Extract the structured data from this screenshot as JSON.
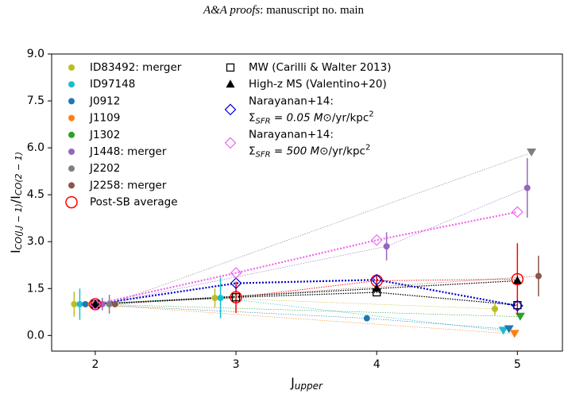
{
  "header": {
    "journal": "A&A proofs",
    "text": ": manuscript no. main"
  },
  "chart_data": {
    "type": "scatter",
    "xlabel": [
      "J",
      "upper"
    ],
    "ylabel": [
      "I",
      "CO(J,J − 1)",
      "/I",
      "CO(2 − 1)"
    ],
    "xlim": [
      1.69,
      5.32
    ],
    "ylim": [
      -0.5,
      9.0
    ],
    "xticks": [
      2,
      3,
      4,
      5
    ],
    "yticks": [
      {
        "value": 0,
        "label": "0.0"
      },
      1.5,
      {
        "value": 3,
        "label": "3.0"
      },
      4.5,
      {
        "value": 6,
        "label": "6.0"
      },
      7.5,
      {
        "value": 9,
        "label": "9.0"
      }
    ],
    "series": [
      {
        "name": "ID83492: merger",
        "color": "#bcbd22",
        "marker": "o",
        "x": [
          1.85,
          2.85,
          4.84
        ],
        "values": [
          1.0,
          1.2,
          0.85
        ],
        "errors": [
          0.4,
          0.3,
          0.2
        ]
      },
      {
        "name": "ID97148",
        "color": "#17becf",
        "marker": "o",
        "x": [
          1.89,
          2.89,
          4.9
        ],
        "values": [
          1.0,
          1.2,
          0.15
        ],
        "errors": [
          0.5,
          0.65,
          null
        ],
        "upper_limits": [
          false,
          false,
          true
        ]
      },
      {
        "name": "J0912",
        "color": "#1f77b4",
        "marker": "o",
        "x": [
          1.93,
          3.93,
          4.94
        ],
        "values": [
          1.0,
          0.55,
          0.2
        ],
        "errors": [
          null,
          null,
          null
        ],
        "upper_limits": [
          false,
          false,
          true
        ]
      },
      {
        "name": "J1109",
        "color": "#ff7f0e",
        "marker": "o",
        "x": [
          1.97,
          4.98
        ],
        "values": [
          1.0,
          0.05
        ],
        "errors": [
          null,
          null
        ],
        "upper_limits": [
          false,
          true
        ]
      },
      {
        "name": "J1302",
        "color": "#2ca02c",
        "marker": "o",
        "x": [
          2.01,
          5.02
        ],
        "values": [
          1.0,
          0.6
        ],
        "errors": [
          null,
          null
        ],
        "upper_limits": [
          false,
          true
        ]
      },
      {
        "name": "J1448: merger",
        "color": "#9467bd",
        "marker": "o",
        "x": [
          2.05,
          4.07,
          5.07
        ],
        "values": [
          1.0,
          2.85,
          4.72
        ],
        "errors": [
          0.2,
          0.45,
          0.95
        ]
      },
      {
        "name": "J2202",
        "color": "#7f7f7f",
        "marker": "o",
        "x": [
          2.1,
          5.1
        ],
        "values": [
          1.0,
          5.85
        ],
        "errors": [
          0.3,
          null
        ],
        "upper_limits": [
          false,
          true
        ]
      },
      {
        "name": "J2258: merger",
        "color": "#8c564b",
        "marker": "o",
        "x": [
          2.14,
          5.15
        ],
        "values": [
          1.0,
          1.9
        ],
        "errors": [
          null,
          0.65
        ]
      },
      {
        "name": "Post-SB average",
        "color": "#ff0000",
        "marker": "o-open",
        "x": [
          2,
          3,
          4,
          5
        ],
        "values": [
          1.0,
          1.22,
          1.75,
          1.8
        ],
        "errors": [
          0.15,
          0.5,
          0.2,
          1.15
        ]
      },
      {
        "name": "MW (Carilli & Walter 2013)",
        "color": "#000000",
        "marker": "s-open",
        "x": [
          2,
          3,
          4,
          5
        ],
        "values": [
          1.0,
          1.22,
          1.38,
          0.97
        ]
      },
      {
        "name": "High-z MS (Valentino+20)",
        "color": "#000000",
        "marker": "^",
        "x": [
          2,
          4,
          5
        ],
        "values": [
          1.0,
          1.5,
          1.75
        ]
      },
      {
        "name": "Narayanan+14:",
        "line2": [
          "Σ",
          "SFR",
          " = 0.05 M",
          "⊙",
          "/yr/kpc",
          "2"
        ],
        "color": "#0000cc",
        "marker": "D-open",
        "x": [
          2,
          3,
          4,
          5
        ],
        "values": [
          1.0,
          1.67,
          1.78,
          0.95
        ]
      },
      {
        "name": "Narayanan+14:",
        "line2": [
          "Σ",
          "SFR",
          " = 500 M",
          "⊙",
          "/yr/kpc",
          "2"
        ],
        "color": "#ee66ee",
        "marker": "D-open",
        "x": [
          2,
          3,
          4,
          5
        ],
        "values": [
          1.0,
          2.0,
          3.05,
          3.95
        ]
      }
    ]
  }
}
